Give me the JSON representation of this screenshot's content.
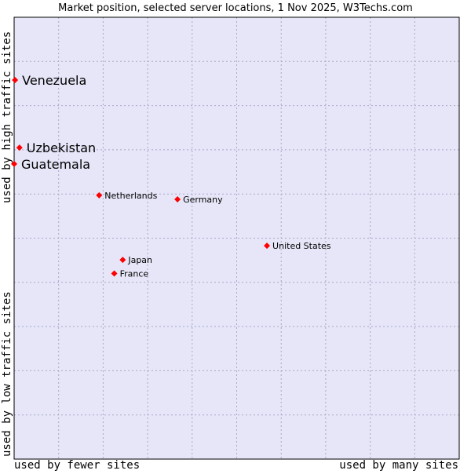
{
  "chart_data": {
    "type": "scatter",
    "title": "Market position, selected server locations, 1 Nov 2025, W3Techs.com",
    "xlabel_left": "used by fewer sites",
    "xlabel_right": "used by many sites",
    "ylabel_bottom": "used by low traffic sites",
    "ylabel_top": "used by high traffic sites",
    "xlim": [
      0,
      100
    ],
    "ylim": [
      0,
      100
    ],
    "grid": true,
    "colors": {
      "plot_bg": "#e6e6f8",
      "grid": "#a8a8c8",
      "border": "#000000",
      "marker": "#ff0000",
      "text": "#000000"
    },
    "points": [
      {
        "label": "Venezuela",
        "x": 0.2,
        "y": 85.8,
        "emphasis": true
      },
      {
        "label": "Uzbekistan",
        "x": 1.2,
        "y": 70.5,
        "emphasis": true
      },
      {
        "label": "Guatemala",
        "x": 0.0,
        "y": 66.8,
        "emphasis": true
      },
      {
        "label": "Netherlands",
        "x": 19.1,
        "y": 59.7,
        "emphasis": false
      },
      {
        "label": "Germany",
        "x": 36.7,
        "y": 58.8,
        "emphasis": false
      },
      {
        "label": "United States",
        "x": 56.8,
        "y": 48.3,
        "emphasis": false
      },
      {
        "label": "Japan",
        "x": 24.4,
        "y": 45.1,
        "emphasis": false
      },
      {
        "label": "France",
        "x": 22.5,
        "y": 42.0,
        "emphasis": false
      }
    ]
  }
}
